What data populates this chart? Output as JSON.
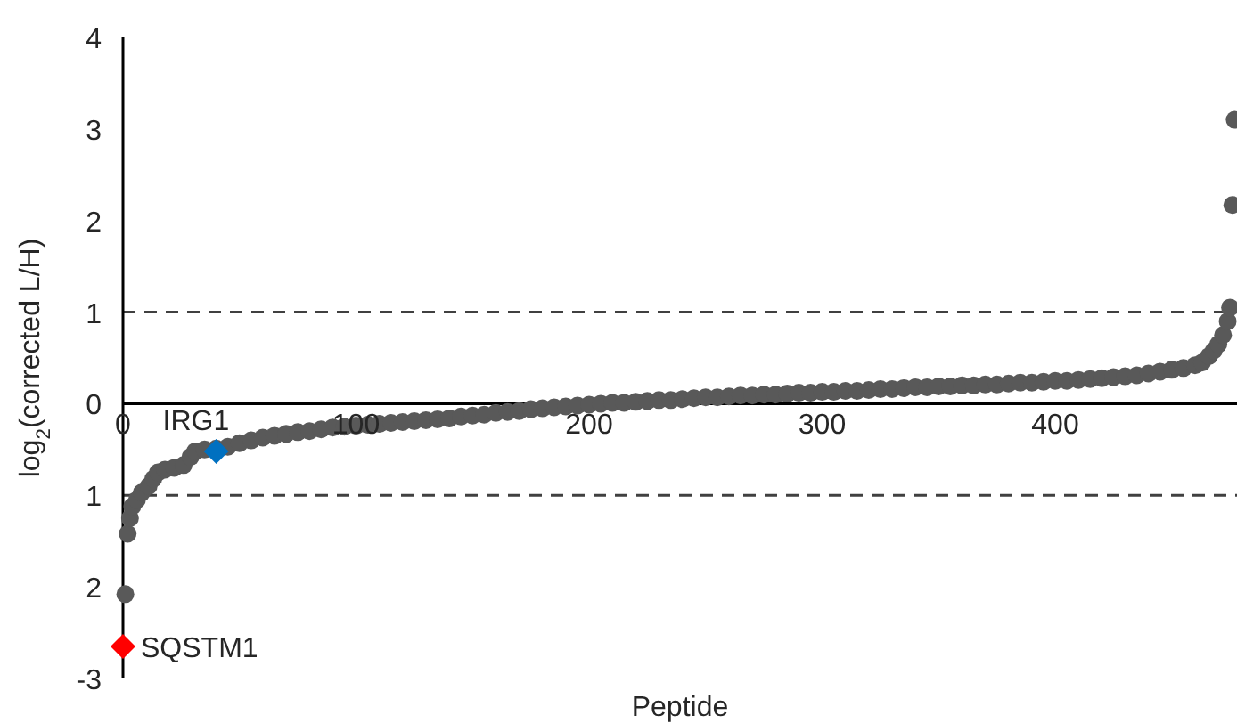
{
  "chart_data": {
    "type": "scatter",
    "xlabel": "Peptide",
    "ylabel": "log$_{2}$(corrected L/H)",
    "xlim": [
      0,
      478
    ],
    "xticks": [
      0,
      100,
      200,
      300,
      400
    ],
    "ylim": [
      -3,
      4
    ],
    "yticks": [
      {
        "value": -3,
        "label": "-3"
      },
      {
        "value": -2,
        "label": "2"
      },
      {
        "value": -1,
        "label": "1"
      },
      0,
      1,
      2,
      3,
      4
    ],
    "grid": false,
    "legend": false,
    "series": [
      {
        "color": "#595959",
        "marker": "circle",
        "x": [
          1,
          2,
          3,
          4,
          6,
          8,
          11,
          13,
          15,
          18,
          22,
          26,
          29,
          31,
          35,
          40,
          45,
          50,
          55,
          60,
          65,
          70,
          75,
          80,
          85,
          90,
          95,
          100,
          105,
          110,
          115,
          120,
          125,
          130,
          135,
          140,
          145,
          150,
          155,
          160,
          165,
          170,
          175,
          180,
          185,
          190,
          195,
          200,
          205,
          210,
          215,
          220,
          225,
          230,
          235,
          240,
          245,
          250,
          255,
          260,
          265,
          270,
          275,
          280,
          285,
          290,
          295,
          300,
          305,
          310,
          315,
          320,
          325,
          330,
          335,
          340,
          345,
          350,
          355,
          360,
          365,
          370,
          375,
          380,
          385,
          390,
          395,
          400,
          405,
          410,
          415,
          420,
          425,
          430,
          435,
          440,
          445,
          450,
          455,
          460,
          463,
          466,
          468,
          470,
          472,
          474,
          475,
          476,
          477
        ],
        "values": [
          -2.08,
          -1.42,
          -1.25,
          -1.12,
          -1.05,
          -0.97,
          -0.9,
          -0.82,
          -0.75,
          -0.72,
          -0.7,
          -0.67,
          -0.58,
          -0.52,
          -0.5,
          -0.49,
          -0.47,
          -0.43,
          -0.4,
          -0.37,
          -0.35,
          -0.33,
          -0.31,
          -0.3,
          -0.28,
          -0.26,
          -0.25,
          -0.24,
          -0.23,
          -0.22,
          -0.21,
          -0.2,
          -0.19,
          -0.18,
          -0.17,
          -0.16,
          -0.14,
          -0.13,
          -0.12,
          -0.1,
          -0.09,
          -0.08,
          -0.06,
          -0.05,
          -0.04,
          -0.03,
          -0.02,
          -0.01,
          0,
          0.01,
          0.01,
          0.02,
          0.03,
          0.04,
          0.04,
          0.05,
          0.06,
          0.07,
          0.07,
          0.08,
          0.09,
          0.09,
          0.1,
          0.1,
          0.11,
          0.12,
          0.12,
          0.13,
          0.13,
          0.14,
          0.14,
          0.15,
          0.16,
          0.16,
          0.17,
          0.18,
          0.18,
          0.19,
          0.19,
          0.2,
          0.2,
          0.21,
          0.21,
          0.22,
          0.23,
          0.23,
          0.24,
          0.25,
          0.25,
          0.26,
          0.27,
          0.28,
          0.29,
          0.3,
          0.31,
          0.33,
          0.35,
          0.37,
          0.39,
          0.42,
          0.45,
          0.52,
          0.58,
          0.65,
          0.75,
          0.9,
          1.05,
          2.17,
          3.1
        ]
      },
      {
        "name": "SQSTM1",
        "color": "#ff0000",
        "marker": "diamond",
        "x": [
          0
        ],
        "values": [
          -2.65
        ]
      },
      {
        "name": "IRG1",
        "color": "#0070c0",
        "marker": "diamond",
        "x": [
          40
        ],
        "values": [
          -0.52
        ]
      }
    ],
    "ref_lines": [
      {
        "axis": "y",
        "value": 1,
        "line_style": "dashed",
        "color": "#404040"
      },
      {
        "axis": "y",
        "value": -1,
        "line_style": "dashed",
        "color": "#404040"
      }
    ]
  }
}
